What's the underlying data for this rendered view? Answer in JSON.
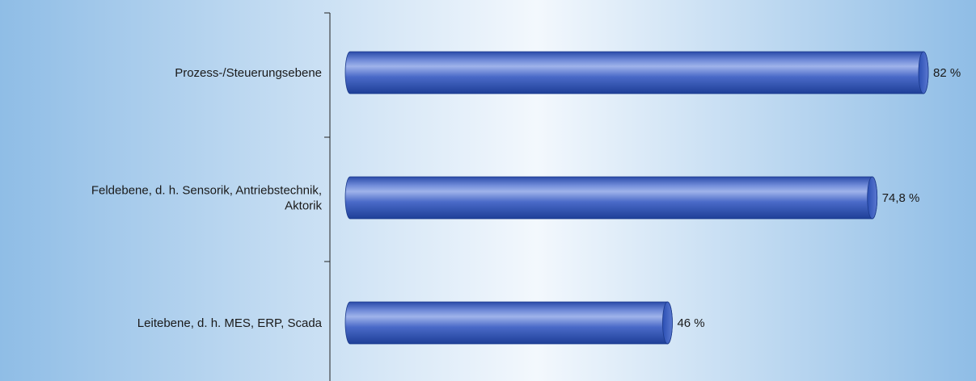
{
  "chart_data": {
    "type": "bar",
    "orientation": "horizontal",
    "categories": [
      [
        "Prozess-/Steuerungsebene"
      ],
      [
        "Feldebene, d. h. Sensorik, Antriebstechnik,",
        "Aktorik"
      ],
      [
        "Leitebene, d. h. MES, ERP,  Scada"
      ]
    ],
    "values": [
      82,
      74.8,
      46
    ],
    "value_labels": [
      "82 %",
      "74,8 %",
      "46 %"
    ],
    "title": "",
    "xlabel": "",
    "ylabel": "",
    "xlim": [
      0,
      100
    ],
    "grid": false,
    "legend": "none",
    "colors": {
      "bar_dark": "#1e3f97",
      "bar_mid": "#4a6ac8",
      "bar_light": "#9fb3ea",
      "background_edge": "#8fbde6",
      "background_center": "#f3f8fd",
      "axis": "#222222"
    }
  }
}
